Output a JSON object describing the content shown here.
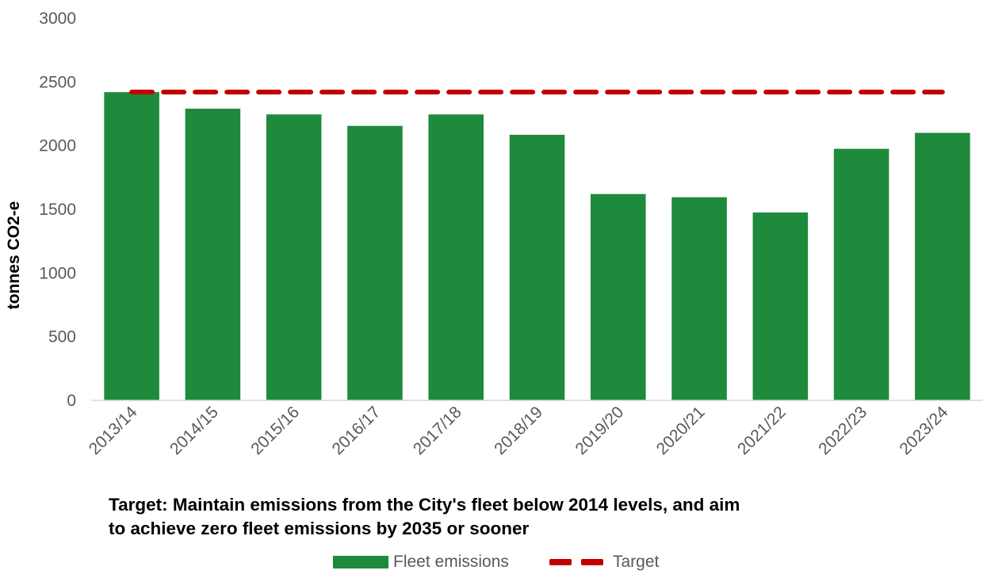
{
  "chart_data": {
    "type": "bar",
    "categories": [
      "2013/14",
      "2014/15",
      "2015/16",
      "2016/17",
      "2017/18",
      "2018/19",
      "2019/20",
      "2020/21",
      "2021/22",
      "2022/23",
      "2023/24"
    ],
    "series": [
      {
        "name": "Fleet emissions",
        "type": "bar",
        "color": "#1e8a3b",
        "values": [
          2420,
          2290,
          2245,
          2155,
          2245,
          2085,
          1620,
          1595,
          1475,
          1975,
          2100
        ]
      },
      {
        "name": "Target",
        "type": "line",
        "style": "dashed",
        "color": "#c00000",
        "values": [
          2420,
          2420,
          2420,
          2420,
          2420,
          2420,
          2420,
          2420,
          2420,
          2420,
          2420
        ]
      }
    ],
    "title": "",
    "xlabel": "",
    "ylabel": "tonnes CO2-e",
    "ylim": [
      0,
      3000
    ],
    "yticks": [
      "0",
      "500",
      "1000",
      "1500",
      "2000",
      "2500",
      "3000"
    ],
    "grid": false,
    "legend_position": "bottom"
  },
  "note": {
    "line1": "Target: Maintain emissions from the City's fleet below 2014 levels, and aim",
    "line2": "to achieve zero fleet emissions by 2035 or sooner"
  },
  "legend": {
    "bar_label": "Fleet emissions",
    "line_label": "Target"
  }
}
